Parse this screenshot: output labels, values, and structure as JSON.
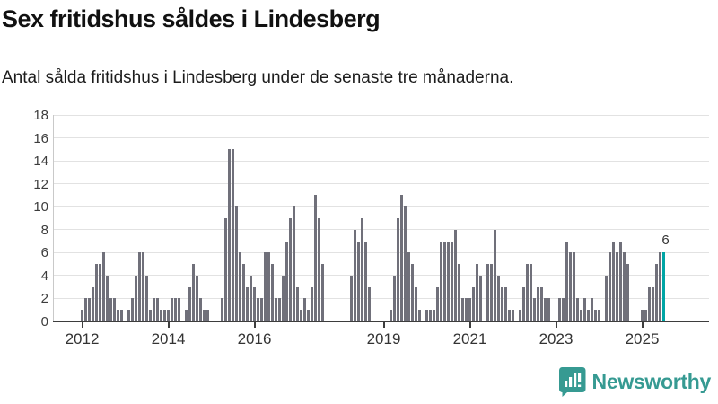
{
  "page": {
    "title": "Sex fritidshus såldes i Lindesberg",
    "subtitle": "Antal sålda fritidshus i Lindesberg under de senaste tre månaderna."
  },
  "chart_data": {
    "type": "bar",
    "title": "Sex fritidshus såldes i Lindesberg",
    "subtitle": "Antal sålda fritidshus i Lindesberg under de senaste tre månaderna.",
    "x_frequency": "monthly",
    "x_start": "2012-01",
    "values": [
      1,
      2,
      2,
      3,
      5,
      5,
      6,
      4,
      2,
      2,
      1,
      1,
      0,
      1,
      2,
      4,
      6,
      6,
      4,
      1,
      2,
      2,
      1,
      1,
      1,
      2,
      2,
      2,
      0,
      1,
      3,
      5,
      4,
      2,
      1,
      1,
      0,
      0,
      0,
      2,
      9,
      15,
      15,
      10,
      6,
      5,
      3,
      4,
      3,
      2,
      2,
      6,
      6,
      5,
      2,
      2,
      4,
      7,
      9,
      10,
      3,
      1,
      2,
      1,
      3,
      11,
      9,
      5,
      0,
      0,
      0,
      0,
      0,
      0,
      0,
      4,
      8,
      7,
      9,
      7,
      3,
      0,
      0,
      0,
      0,
      0,
      1,
      4,
      9,
      11,
      10,
      6,
      5,
      3,
      1,
      0,
      1,
      1,
      1,
      3,
      7,
      7,
      7,
      7,
      8,
      5,
      2,
      2,
      2,
      3,
      5,
      4,
      0,
      5,
      5,
      8,
      4,
      3,
      3,
      1,
      1,
      0,
      1,
      3,
      5,
      5,
      2,
      3,
      3,
      2,
      2,
      0,
      0,
      2,
      2,
      7,
      6,
      6,
      2,
      1,
      2,
      1,
      2,
      1,
      1,
      0,
      4,
      6,
      7,
      6,
      7,
      6,
      5,
      0,
      0,
      0,
      1,
      1,
      3,
      3,
      5,
      6,
      6
    ],
    "y_ticks": [
      0,
      2,
      4,
      6,
      8,
      10,
      12,
      14,
      16,
      18
    ],
    "ylim": [
      0,
      18
    ],
    "x_tick_labels": [
      {
        "label": "2012",
        "month_index": 0
      },
      {
        "label": "2014",
        "month_index": 24
      },
      {
        "label": "2016",
        "month_index": 48
      },
      {
        "label": "2019",
        "month_index": 84
      },
      {
        "label": "2021",
        "month_index": 108
      },
      {
        "label": "2023",
        "month_index": 132
      },
      {
        "label": "2025",
        "month_index": 156
      }
    ],
    "highlight": {
      "index": 162,
      "value": 6,
      "label": "6"
    },
    "colors": {
      "bar": "#70707a",
      "highlight": "#00a5a5",
      "grid": "#e2e2e2",
      "axis": "#3d3d3d"
    },
    "grid": "horizontal",
    "legend": "none"
  },
  "branding": {
    "logo_text": "Newsworthy",
    "logo_color": "#369a92",
    "logo_icon": "newsworthy-speech-bubble-chart-icon"
  }
}
